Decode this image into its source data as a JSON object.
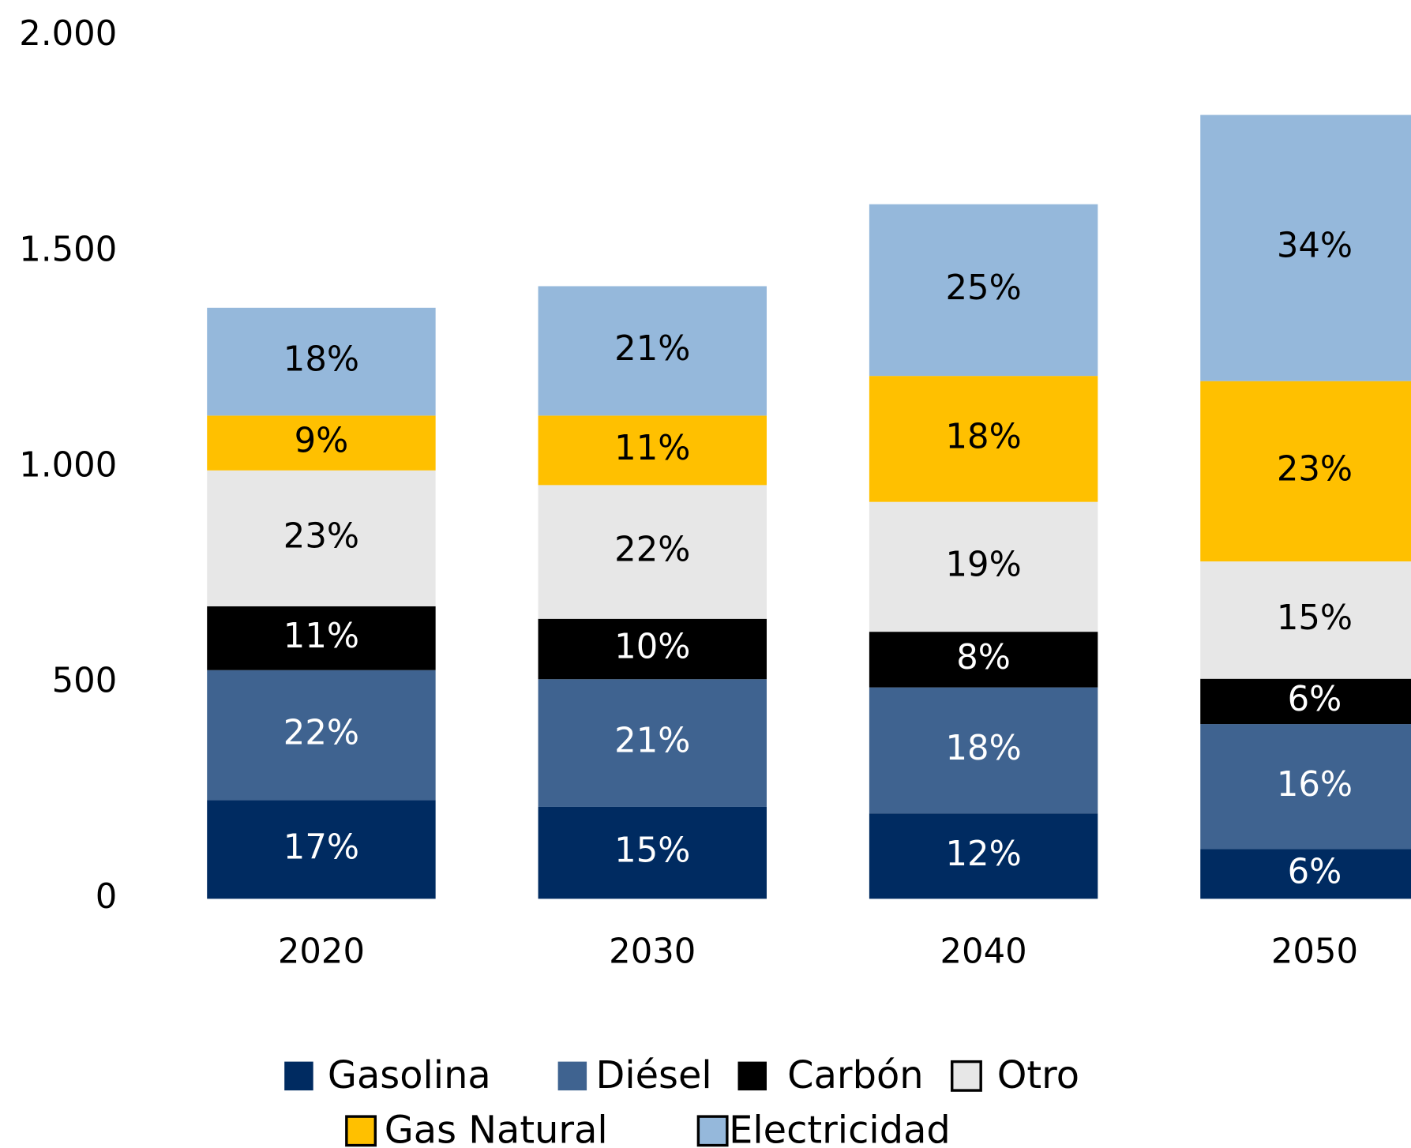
{
  "chart_data": {
    "type": "stacked_bar",
    "categories": [
      "2020",
      "2030",
      "2040",
      "2050"
    ],
    "ylim": [
      0,
      2000
    ],
    "yticks": [
      {
        "value": 0,
        "label": "0"
      },
      {
        "value": 500,
        "label": "500"
      },
      {
        "value": 1000,
        "label": "1.000"
      },
      {
        "value": 1500,
        "label": "1.500"
      },
      {
        "value": 2000,
        "label": "2.000"
      }
    ],
    "series": [
      {
        "name": "Gasolina",
        "color": "#002b61",
        "values": [
          229,
          213,
          198,
          115
        ],
        "value_labels": [
          "17%",
          "15%",
          "12%",
          "6%"
        ]
      },
      {
        "name": "Diésel",
        "color": "#3f6390",
        "values": [
          301,
          296,
          292,
          290
        ],
        "value_labels": [
          "22%",
          "21%",
          "18%",
          "16%"
        ]
      },
      {
        "name": "Carbón",
        "color": "#000000",
        "values": [
          148,
          140,
          129,
          105
        ],
        "value_labels": [
          "11%",
          "10%",
          "8%",
          "6%"
        ]
      },
      {
        "name": "Otro",
        "color": "#e7e7e7",
        "values": [
          315,
          310,
          301,
          272
        ],
        "value_labels": [
          "23%",
          "22%",
          "19%",
          "15%"
        ]
      },
      {
        "name": "Gas Natural",
        "color": "#ffc000",
        "values": [
          127,
          161,
          292,
          418
        ],
        "value_labels": [
          "9%",
          "11%",
          "18%",
          "23%"
        ]
      },
      {
        "name": "Electricidad",
        "color": "#95b8db",
        "values": [
          250,
          300,
          398,
          617
        ],
        "value_labels": [
          "18%",
          "21%",
          "25%",
          "34%"
        ]
      }
    ],
    "legend": "bottom"
  }
}
